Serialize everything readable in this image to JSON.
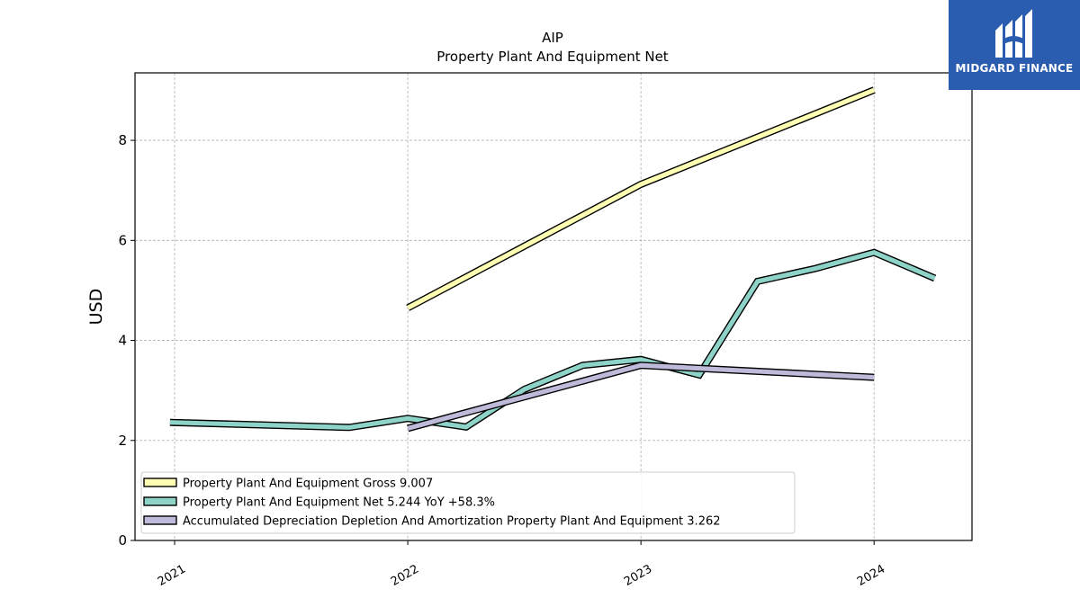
{
  "brand": {
    "name": "MIDGARD FINANCE",
    "logo_color": "#2a5db0"
  },
  "chart_data": {
    "type": "line",
    "title": "AIP",
    "subtitle": "Property Plant And Equipment Net",
    "ylabel": "USD",
    "xlabel": "",
    "ylim": [
      0,
      9.35
    ],
    "xlim": [
      2020.83,
      2024.42
    ],
    "yticks": [
      0,
      2,
      4,
      6,
      8
    ],
    "xticks": [
      {
        "value": 2021,
        "label": "2021"
      },
      {
        "value": 2022,
        "label": "2022"
      },
      {
        "value": 2023,
        "label": "2023"
      },
      {
        "value": 2024,
        "label": "2024"
      }
    ],
    "grid": true,
    "legend_position": "lower-left",
    "series": [
      {
        "name": "Property Plant And Equipment Gross",
        "legend_label": "Property Plant And Equipment Gross  9.007",
        "color": "#ffffb3",
        "points": [
          [
            2022.0,
            4.65
          ],
          [
            2023.0,
            7.12
          ],
          [
            2024.0,
            9.007
          ]
        ]
      },
      {
        "name": "Property Plant And Equipment Net",
        "legend_label": "Property Plant And Equipment Net  5.244 YoY +58.3%",
        "color": "#8dd3c7",
        "points": [
          [
            2020.98,
            2.36
          ],
          [
            2021.75,
            2.26
          ],
          [
            2022.0,
            2.44
          ],
          [
            2022.25,
            2.27
          ],
          [
            2022.5,
            3.02
          ],
          [
            2022.75,
            3.5
          ],
          [
            2023.0,
            3.62
          ],
          [
            2023.25,
            3.31
          ],
          [
            2023.5,
            5.18
          ],
          [
            2023.75,
            5.44
          ],
          [
            2024.0,
            5.76
          ],
          [
            2024.26,
            5.244
          ]
        ]
      },
      {
        "name": "Accumulated Depreciation Depletion And Amortization Property Plant And Equipment",
        "legend_label": "Accumulated Depreciation Depletion And Amortization Property Plant And Equipment  3.262",
        "color": "#bebada",
        "points": [
          [
            2022.0,
            2.24
          ],
          [
            2023.0,
            3.5
          ],
          [
            2024.0,
            3.262
          ]
        ]
      }
    ]
  }
}
